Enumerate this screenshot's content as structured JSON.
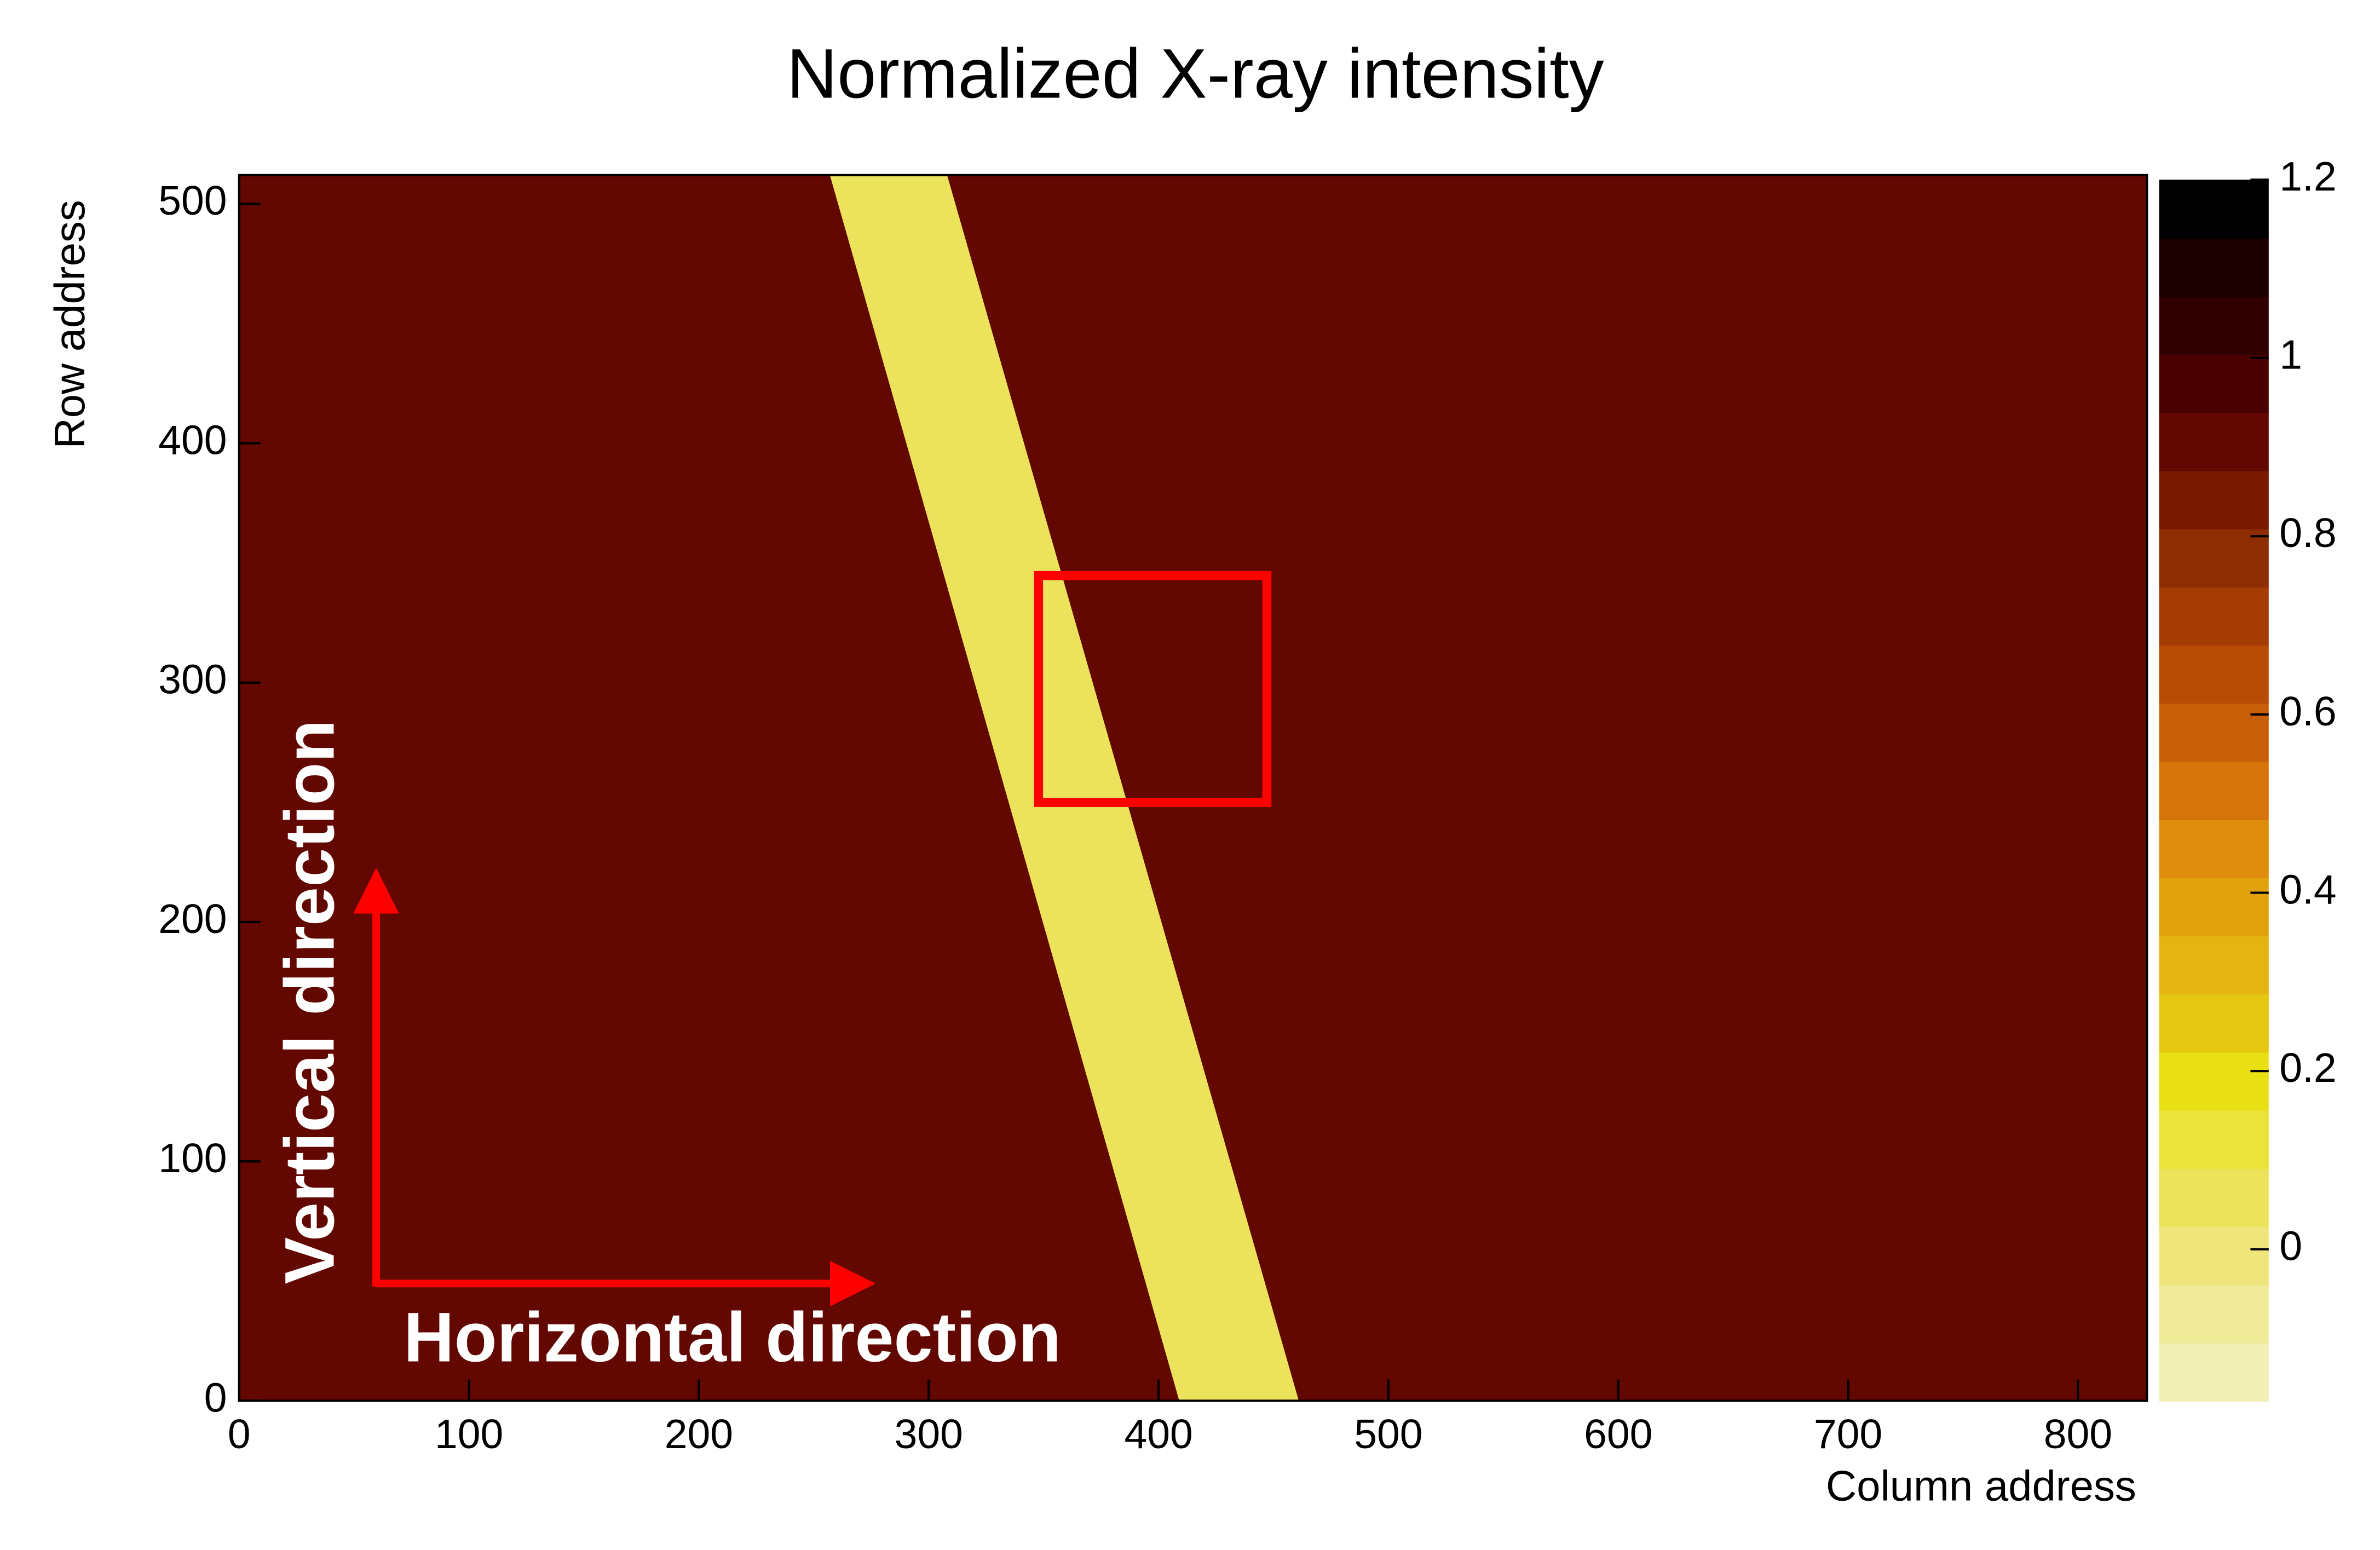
{
  "chart_data": {
    "type": "heatmap",
    "title": "Normalized X-ray intensity",
    "x_label": "Column address",
    "y_label": "Row address",
    "xlim": [
      0,
      830
    ],
    "xticks": [
      0,
      100,
      200,
      300,
      400,
      500,
      600,
      700,
      800
    ],
    "ylim": [
      0,
      512
    ],
    "yticks": [
      0,
      100,
      200,
      300,
      400,
      500
    ],
    "zlim": [
      -0.17,
      1.2
    ],
    "zticks": [
      0,
      0.2,
      0.4,
      0.6,
      0.8,
      1,
      1.2
    ],
    "colors": [
      "#f2efb4",
      "#f0eb98",
      "#eee67a",
      "#ece35c",
      "#eae33c",
      "#e8e014",
      "#e6c812",
      "#e4b410",
      "#e2a20e",
      "#de8c0c",
      "#d6740a",
      "#c85e08",
      "#b84c06",
      "#a43c04",
      "#8e2c02",
      "#781a00",
      "#620800",
      "#4a0000",
      "#300000",
      "#1c0000",
      "#000000"
    ],
    "heatmap": {
      "background": 0.9,
      "band": {
        "value": 0.05,
        "x_top": [
          257,
          308
        ],
        "x_bottom": [
          409,
          461
        ]
      }
    },
    "annotations": [
      "Vertical direction",
      "Horizontal direction"
    ]
  }
}
